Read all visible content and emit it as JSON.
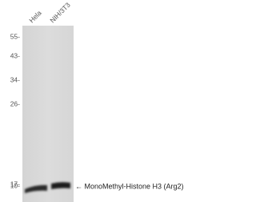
{
  "lanes": [
    "Hela",
    "NIH/3T3"
  ],
  "markers": [
    "55-",
    "43-",
    "34-",
    "26-",
    "17-",
    "10-"
  ],
  "band_label": "← MonoMethyl-Histone H3 (Arg2)"
}
